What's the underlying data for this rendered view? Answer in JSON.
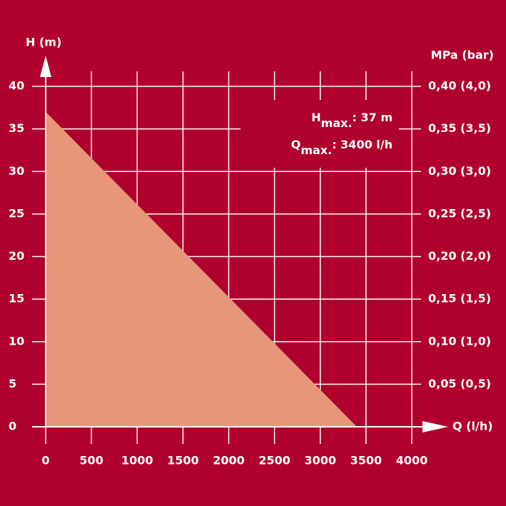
{
  "chart_data": {
    "type": "area",
    "x_label": "Q (l/h)",
    "y_label": "H (m)",
    "y2_label": "MPa (bar)",
    "x": [
      0,
      3400
    ],
    "series": [
      {
        "values": [
          37,
          0
        ],
        "color": "#e8967a"
      }
    ],
    "xlim": [
      0,
      4000
    ],
    "xticks": [
      0,
      500,
      1000,
      1500,
      2000,
      2500,
      3000,
      3500,
      4000
    ],
    "ylim": [
      0,
      40
    ],
    "yticks": [
      0,
      5,
      10,
      15,
      20,
      25,
      30,
      35,
      40
    ],
    "y2lim": [
      0,
      0.4
    ],
    "y2ticks": [
      {
        "value": 0.05,
        "label": "0,05 (0,5)"
      },
      {
        "value": 0.1,
        "label": "0,10 (1,0)"
      },
      {
        "value": 0.15,
        "label": "0,15 (1,5)"
      },
      {
        "value": 0.2,
        "label": "0,20 (2,0)"
      },
      {
        "value": 0.25,
        "label": "0,25 (2,5)"
      },
      {
        "value": 0.3,
        "label": "0,30 (3,0)"
      },
      {
        "value": 0.35,
        "label": "0,35 (3,5)"
      },
      {
        "value": 0.4,
        "label": "0,40 (4,0)"
      }
    ],
    "grid": true,
    "annotations": [
      {
        "text": "H",
        "sub": "max.",
        "rest": ": 37 m"
      },
      {
        "text": "Q",
        "sub": "max.",
        "rest": ": 3400 l/h"
      }
    ]
  }
}
